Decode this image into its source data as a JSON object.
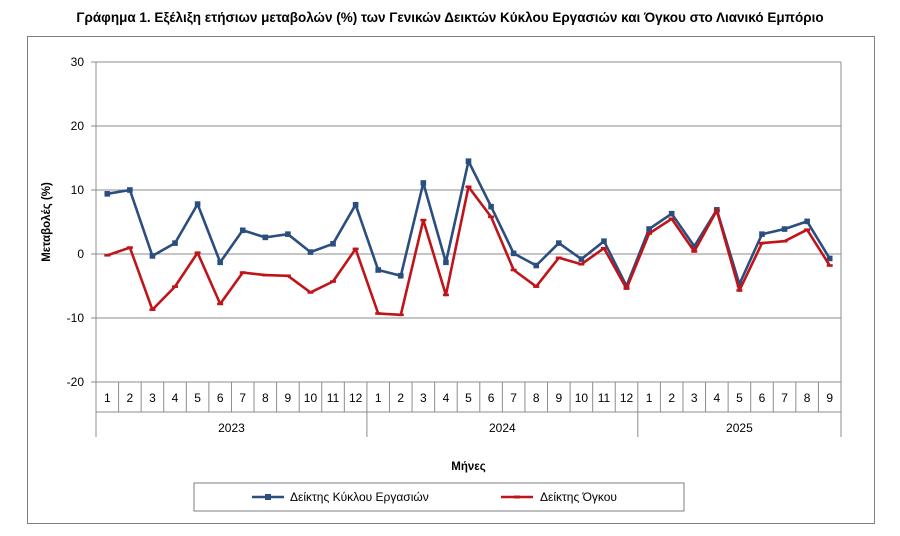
{
  "chart_data": {
    "type": "line",
    "title": "Γράφημα 1. Εξέλιξη ετήσιων μεταβολών (%) των Γενικών Δεικτών Κύκλου Εργασιών και Όγκου στο Λιανικό Εμπόριο",
    "xlabel": "Μήνες",
    "ylabel": "Μεταβολές (%)",
    "ylim": [
      -20,
      30
    ],
    "yticks": [
      30,
      20,
      10,
      0,
      -10,
      -20
    ],
    "grid": true,
    "legend_position": "bottom",
    "groups": [
      {
        "year": "2023",
        "months": [
          "1",
          "2",
          "3",
          "4",
          "5",
          "6",
          "7",
          "8",
          "9",
          "10",
          "11",
          "12"
        ]
      },
      {
        "year": "2024",
        "months": [
          "1",
          "2",
          "3",
          "4",
          "5",
          "6",
          "7",
          "8",
          "9",
          "10",
          "11",
          "12"
        ]
      },
      {
        "year": "2025",
        "months": [
          "1",
          "2",
          "3",
          "4",
          "5",
          "6",
          "7",
          "8",
          "9"
        ]
      }
    ],
    "series": [
      {
        "name": "Δείκτης Κύκλου Εργασιών",
        "color": "#2b4e7f",
        "marker": "square",
        "values": [
          9.4,
          10.0,
          -0.3,
          1.7,
          7.8,
          -1.3,
          3.7,
          2.6,
          3.1,
          0.3,
          1.6,
          7.7,
          -2.5,
          -3.4,
          11.1,
          -1.3,
          14.5,
          7.4,
          0.1,
          -1.8,
          1.7,
          -0.8,
          2.0,
          -5.0,
          3.9,
          6.3,
          1.2,
          6.9,
          -4.7,
          3.1,
          3.9,
          5.1,
          -0.7
        ]
      },
      {
        "name": "Δείκτης Όγκου",
        "color": "#c0141b",
        "marker": "dash",
        "values": [
          -0.2,
          1.0,
          -8.7,
          -5.1,
          0.2,
          -7.8,
          -2.9,
          -3.3,
          -3.4,
          -6.0,
          -4.3,
          0.8,
          -9.3,
          -9.5,
          5.3,
          -6.4,
          10.5,
          5.8,
          -2.5,
          -5.1,
          -0.6,
          -1.6,
          0.9,
          -5.4,
          3.2,
          5.5,
          0.4,
          6.8,
          -5.7,
          1.7,
          2.0,
          3.8,
          -1.8
        ]
      }
    ]
  }
}
